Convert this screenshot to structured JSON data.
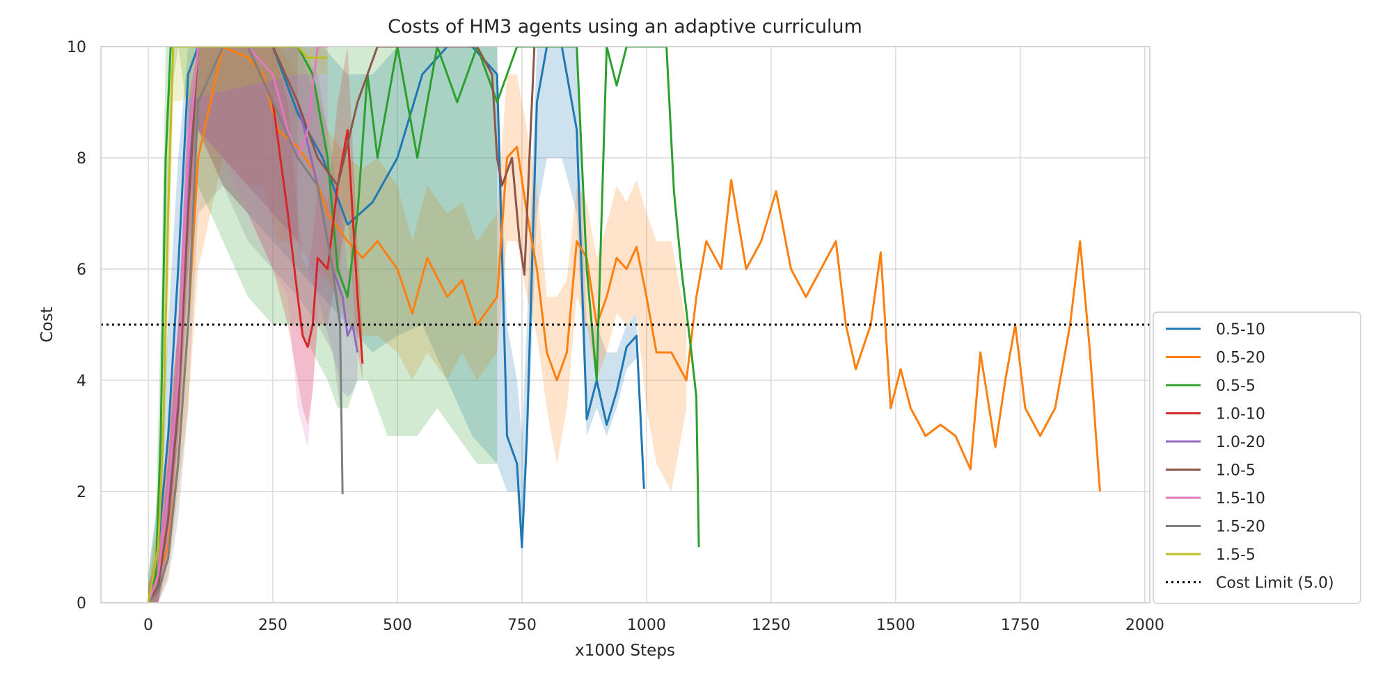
{
  "chart_data": {
    "type": "line",
    "title": "Costs of HM3 agents using an adaptive curriculum",
    "xlabel": "x1000 Steps",
    "ylabel": "Cost",
    "xlim": [
      -95,
      2010
    ],
    "ylim": [
      0,
      10
    ],
    "x_ticks": [
      0,
      250,
      500,
      750,
      1000,
      1250,
      1500,
      1750,
      2000
    ],
    "y_ticks": [
      0,
      2,
      4,
      6,
      8,
      10
    ],
    "x_tick_labels": [
      "0",
      "250",
      "500",
      "750",
      "1000",
      "1250",
      "1500",
      "1750",
      "2000"
    ],
    "y_tick_labels": [
      "0",
      "2",
      "4",
      "6",
      "8",
      "10"
    ],
    "grid": true,
    "legend_position": "lower-right, outside plot",
    "band_style": "shaded min-max band around each series mean",
    "series": [
      {
        "name": "0.5-10",
        "color": "#1f77b4",
        "x": [
          0,
          20,
          40,
          60,
          80,
          100,
          150,
          200,
          250,
          300,
          350,
          400,
          450,
          500,
          550,
          600,
          650,
          700,
          720,
          740,
          750,
          760,
          780,
          800,
          830,
          860,
          880,
          900,
          920,
          940,
          960,
          980,
          995
        ],
        "y": [
          0,
          1.0,
          3.0,
          6.0,
          9.5,
          10,
          10,
          10,
          10,
          8.8,
          8.0,
          6.8,
          7.2,
          8.0,
          9.5,
          10,
          10,
          9.5,
          3.0,
          2.5,
          1.0,
          3.0,
          9.0,
          10,
          10,
          8.5,
          3.3,
          4.0,
          3.2,
          3.8,
          4.6,
          4.8,
          2.05
        ],
        "band_low": [
          0,
          0,
          1.5,
          4.0,
          7.0,
          8.5,
          7.5,
          7.0,
          6.5,
          6.0,
          5.5,
          5.0,
          4.5,
          4.8,
          5.0,
          4.0,
          3.0,
          2.5,
          2.0,
          2.0,
          1.0,
          2.5,
          7.0,
          8.0,
          8.0,
          7.0,
          3.0,
          3.5,
          3.0,
          3.5,
          4.2,
          4.4,
          2.0
        ],
        "band_high": [
          0.5,
          2.0,
          5.0,
          8.0,
          10,
          10,
          10,
          10,
          10,
          10,
          10,
          9.5,
          9.5,
          10,
          10,
          10,
          10,
          10,
          5.0,
          4.0,
          3.0,
          5.0,
          10,
          10,
          10,
          10,
          5.0,
          5.0,
          4.5,
          4.5,
          5.0,
          5.2,
          2.2
        ]
      },
      {
        "name": "0.5-20",
        "color": "#ff7f0e",
        "x": [
          0,
          20,
          40,
          60,
          80,
          100,
          150,
          200,
          230,
          260,
          300,
          330,
          360,
          400,
          430,
          460,
          500,
          530,
          560,
          600,
          630,
          660,
          700,
          720,
          740,
          760,
          780,
          800,
          820,
          840,
          860,
          880,
          900,
          920,
          940,
          960,
          980,
          1000,
          1020,
          1050,
          1080,
          1100,
          1120,
          1150,
          1170,
          1200,
          1230,
          1260,
          1290,
          1320,
          1350,
          1380,
          1400,
          1420,
          1450,
          1470,
          1490,
          1510,
          1530,
          1560,
          1590,
          1620,
          1650,
          1670,
          1700,
          1720,
          1740,
          1760,
          1790,
          1820,
          1850,
          1870,
          1890,
          1910
        ],
        "y": [
          0,
          0.5,
          1.0,
          2.5,
          5.0,
          8.0,
          10,
          9.8,
          9.5,
          8.5,
          8.2,
          7.8,
          7.0,
          6.5,
          6.2,
          6.5,
          6.0,
          5.2,
          6.2,
          5.5,
          5.8,
          5.0,
          5.5,
          8.0,
          8.2,
          7.0,
          6.0,
          4.5,
          4.0,
          4.5,
          6.5,
          6.2,
          5.0,
          5.5,
          6.2,
          6.0,
          6.4,
          5.5,
          4.5,
          4.5,
          4.0,
          5.5,
          6.5,
          6.0,
          7.6,
          6.0,
          6.5,
          7.4,
          6.0,
          5.5,
          6.0,
          6.5,
          5.0,
          4.2,
          5.0,
          6.3,
          3.5,
          4.2,
          3.5,
          3.0,
          3.2,
          3.0,
          2.4,
          4.5,
          2.8,
          4.0,
          5.0,
          3.5,
          3.0,
          3.5,
          5.0,
          6.5,
          4.5,
          2.0
        ],
        "band_low": [
          0,
          0,
          0.5,
          2.0,
          3.5,
          6.0,
          8.0,
          7.5,
          7.5,
          6.5,
          6.5,
          6.0,
          5.8,
          5.0,
          4.8,
          4.8,
          4.5,
          4.0,
          4.5,
          4.0,
          4.5,
          4.0,
          4.5,
          6.5,
          6.5,
          5.5,
          4.8,
          3.5,
          2.5,
          3.5,
          5.5,
          5.0,
          4.0,
          4.5,
          5.2,
          5.0,
          5.2,
          3.5,
          2.5,
          2.0,
          3.5
        ],
        "band_high": [
          0.3,
          1.5,
          3.0,
          5.0,
          7.0,
          10,
          10,
          10,
          10,
          10,
          9.5,
          9.5,
          8.5,
          8.0,
          7.8,
          8.0,
          7.5,
          6.5,
          7.5,
          7.0,
          7.2,
          6.5,
          7.0,
          9.5,
          9.5,
          8.5,
          7.5,
          5.5,
          5.5,
          5.8,
          7.5,
          7.2,
          6.2,
          6.8,
          7.5,
          7.2,
          7.6,
          7.0,
          6.5,
          6.5,
          5.0
        ]
      },
      {
        "name": "0.5-5",
        "color": "#2ca02c",
        "x": [
          0,
          15,
          25,
          35,
          45,
          60,
          100,
          150,
          200,
          250,
          300,
          330,
          360,
          380,
          400,
          420,
          440,
          460,
          480,
          500,
          540,
          580,
          620,
          660,
          700,
          740,
          780,
          820,
          860,
          880,
          900,
          920,
          940,
          960,
          980,
          1000,
          1020,
          1040,
          1055,
          1070,
          1090,
          1100,
          1105
        ],
        "y": [
          0,
          0.5,
          3.0,
          8.0,
          10,
          10,
          10,
          10,
          10,
          10,
          10,
          9.5,
          8.0,
          6.0,
          5.5,
          7.0,
          9.5,
          8.0,
          9.0,
          10,
          8.0,
          10,
          9.0,
          10,
          9.0,
          10,
          10,
          10,
          10,
          6.0,
          4.0,
          10,
          9.3,
          10,
          10,
          10,
          10,
          10,
          7.4,
          6.0,
          4.5,
          3.7,
          1.0
        ],
        "band_low": [
          0,
          0,
          1.5,
          6.0,
          9.0,
          10,
          7.5,
          6.5,
          5.5,
          5.0,
          5.0,
          4.5,
          4.0,
          3.5,
          3.5,
          4.0,
          4.0,
          3.5,
          3.0,
          3.0,
          3.0,
          3.5,
          3.0,
          2.5,
          2.5
        ],
        "band_high": [
          0.5,
          1.5,
          5.0,
          10,
          10,
          10,
          10,
          10,
          10,
          10,
          10,
          10,
          10,
          10,
          10,
          10,
          10,
          10,
          10,
          10,
          10,
          10,
          10,
          10,
          10
        ]
      },
      {
        "name": "1.0-10",
        "color": "#d62728",
        "x": [
          0,
          20,
          40,
          60,
          80,
          100,
          150,
          200,
          250,
          280,
          300,
          310,
          320,
          330,
          340,
          360,
          380,
          400,
          420,
          430
        ],
        "y": [
          0,
          0.5,
          2.0,
          4.0,
          7.5,
          10,
          10,
          10,
          9.0,
          7.0,
          5.5,
          4.8,
          4.6,
          5.0,
          6.2,
          6.0,
          7.5,
          8.5,
          5.5,
          4.3
        ],
        "band_low": [
          0,
          0,
          1.0,
          3.0,
          6.0,
          8.5,
          7.5,
          7.0,
          6.0,
          5.0,
          4.0,
          3.5,
          3.2,
          3.8,
          5.0,
          5.0,
          6.0,
          7.0,
          4.5,
          4.0
        ],
        "band_high": [
          0.3,
          1.0,
          3.0,
          5.0,
          9.0,
          10,
          10,
          10,
          10,
          9.0,
          7.0,
          6.2,
          6.0,
          6.5,
          7.5,
          7.2,
          9.0,
          10,
          6.5,
          4.8
        ]
      },
      {
        "name": "1.0-20",
        "color": "#9467bd",
        "x": [
          0,
          20,
          40,
          60,
          80,
          100,
          150,
          200,
          250,
          300,
          340,
          370,
          390,
          400,
          410,
          420
        ],
        "y": [
          0,
          0.3,
          1.5,
          4.0,
          7.5,
          10,
          10,
          10,
          10,
          9.0,
          7.5,
          6.0,
          5.5,
          4.8,
          5.0,
          4.5
        ],
        "band_low": [
          0,
          0,
          0.8,
          3.0,
          6.0,
          8.5,
          8.0,
          7.5,
          7.0,
          6.5,
          5.5,
          4.5,
          3.8,
          3.7,
          3.8,
          4.0
        ],
        "band_high": [
          0.3,
          0.8,
          2.5,
          5.0,
          9.0,
          10,
          10,
          10,
          10,
          10,
          9.0,
          7.5,
          7.0,
          6.0,
          6.0,
          5.0
        ]
      },
      {
        "name": "1.0-5",
        "color": "#8c564b",
        "x": [
          0,
          20,
          40,
          60,
          80,
          100,
          150,
          200,
          250,
          300,
          340,
          380,
          420,
          460,
          500,
          540,
          580,
          620,
          660,
          690,
          700,
          710,
          730,
          745,
          755,
          765,
          775
        ],
        "y": [
          0,
          0.3,
          1.5,
          3.5,
          7.0,
          10,
          10,
          10,
          10,
          9.0,
          8.0,
          7.5,
          9.0,
          10,
          10,
          10,
          10,
          10,
          10,
          9.5,
          8.0,
          7.5,
          8.0,
          6.5,
          5.9,
          8.0,
          10
        ],
        "band_low": [
          0,
          0,
          0.8,
          2.5,
          5.5,
          8.5,
          8.0,
          7.5,
          7.0,
          6.5
        ],
        "band_high": [
          0.3,
          0.8,
          2.5,
          5.0,
          8.5,
          10,
          10,
          10,
          10,
          10
        ]
      },
      {
        "name": "1.5-10",
        "color": "#e377c2",
        "x": [
          0,
          20,
          40,
          60,
          80,
          100,
          150,
          200,
          250,
          280,
          300,
          320,
          340,
          360
        ],
        "y": [
          0,
          0.5,
          2.0,
          4.0,
          8.0,
          10,
          10,
          10,
          9.5,
          8.5,
          8.0,
          8.5,
          10,
          10
        ],
        "band_low": [
          0,
          0,
          1.0,
          3.0,
          6.5,
          8.5,
          8.0,
          7.0,
          6.0,
          5.5,
          3.5,
          2.8,
          5.0,
          7.0
        ],
        "band_high": [
          0.3,
          1.0,
          3.0,
          5.0,
          9.5,
          10,
          10,
          10,
          10,
          10,
          10,
          10,
          10,
          10
        ]
      },
      {
        "name": "1.5-20",
        "color": "#7f7f7f",
        "x": [
          0,
          20,
          40,
          60,
          80,
          100,
          150,
          200,
          250,
          300,
          340,
          370,
          385,
          390
        ],
        "y": [
          0,
          0.2,
          0.8,
          2.5,
          5.0,
          9.0,
          10,
          10,
          9.0,
          8.0,
          7.5,
          6.0,
          5.0,
          1.95
        ],
        "band_low": [
          0,
          0,
          0.4,
          1.5,
          3.5,
          7.0,
          7.5,
          6.5,
          6.0,
          5.5,
          5.0,
          4.5,
          3.5,
          1.9
        ],
        "band_high": [
          0.2,
          0.8,
          1.5,
          3.5,
          6.5,
          10,
          10,
          10,
          10,
          10,
          9.5,
          8.0,
          7.0,
          2.1
        ]
      },
      {
        "name": "1.5-5",
        "color": "#bcbd22",
        "x": [
          0,
          10,
          20,
          30,
          40,
          50,
          300,
          320,
          340,
          360
        ],
        "y": [
          0,
          0.5,
          1.0,
          3.0,
          7.0,
          10,
          10,
          9.8,
          9.8,
          9.8
        ],
        "band_low": [
          0,
          0,
          0.6,
          2.0,
          5.0,
          9.0,
          9.5,
          9.5,
          9.5,
          9.5
        ],
        "band_high": [
          0.2,
          1.0,
          1.4,
          4.5,
          9.0,
          10,
          10,
          10,
          10,
          10
        ]
      }
    ],
    "reference_line": {
      "name": "Cost Limit (5.0)",
      "y": 5.0,
      "color": "#000000",
      "style": "dotted"
    }
  }
}
